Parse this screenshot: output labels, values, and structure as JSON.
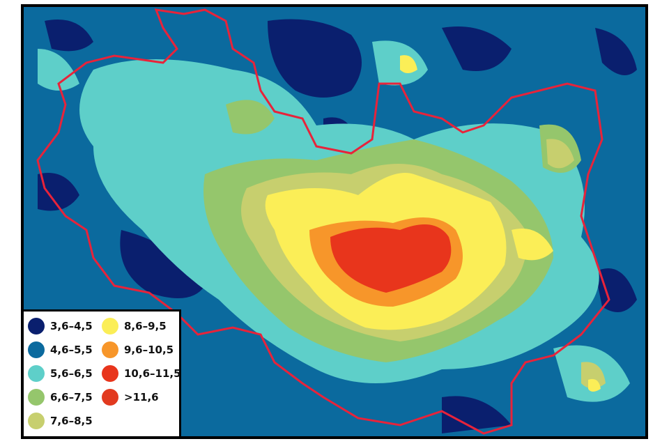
{
  "map": {
    "background_color": "#0b6a9e",
    "boundary_color": "#e8233a",
    "legend_title": ""
  },
  "legend": {
    "items": [
      {
        "label": "3,6–4,5",
        "color": "#0a1f6e"
      },
      {
        "label": "4,6–5,5",
        "color": "#0b6a9e"
      },
      {
        "label": "5,6–6,5",
        "color": "#5ecfc9"
      },
      {
        "label": "6,6–7,5",
        "color": "#95c66c"
      },
      {
        "label": "7,6–8,5",
        "color": "#c7cf6e"
      },
      {
        "label": "8,6–9,5",
        "color": "#fbee57"
      },
      {
        "label": "9,6–10,5",
        "color": "#f7962a"
      },
      {
        "label": "10,6–11,5",
        "color": "#e8351c"
      },
      {
        "label": ">11,6",
        "color": "#e23a1f"
      }
    ]
  }
}
